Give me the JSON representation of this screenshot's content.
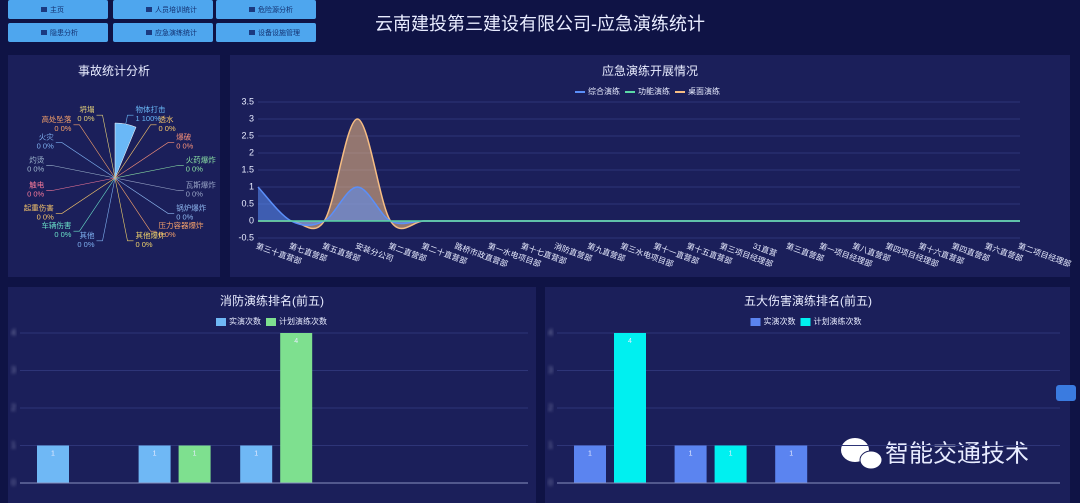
{
  "nav": [
    "主页",
    "人员培训统计",
    "危险源分析",
    "隐患分析",
    "应急演练统计",
    "设备设施管理"
  ],
  "title": "云南建投第三建设有限公司-应急演练统计",
  "watermark": "智能交通技术",
  "chart_data": [
    {
      "type": "pie",
      "title": "事故统计分析",
      "categories": [
        "物体打击",
        "透水",
        "爆破",
        "火药爆炸",
        "瓦斯爆炸",
        "锅炉爆炸",
        "压力容器爆炸",
        "其他爆炸",
        "其他",
        "车辆伤害",
        "起重伤害",
        "触电",
        "灼烫",
        "火灾",
        "高处坠落",
        "坍塌"
      ],
      "values": [
        1,
        0,
        0,
        0,
        0,
        0,
        0,
        0,
        0,
        0,
        0,
        0,
        0,
        0,
        0,
        0
      ],
      "value_labels": [
        "1 100%",
        "0 0%",
        "0 0%",
        "0 0%",
        "0 0%",
        "0 0%",
        "0 0%",
        "0 0%",
        "0 0%",
        "0 0%",
        "0 0%",
        "0 0%",
        "0 0%",
        "0 0%",
        "0 0%",
        "0 0%"
      ],
      "colors": [
        "#6ab8f7",
        "#f7c66b",
        "#f7917a",
        "#8be0a4",
        "#9aa6c8",
        "#8fb8f0",
        "#f7a26b",
        "#f0d26b",
        "#7fb0f0",
        "#6be0c8",
        "#f7c66b",
        "#f77a9a",
        "#a0b8d0",
        "#7fb0f0",
        "#f7a26b",
        "#e6d27a"
      ]
    },
    {
      "type": "line",
      "title": "应急演练开展情况",
      "legend": "top",
      "grid": true,
      "categories": [
        "第三十直营部",
        "第七直营部",
        "第五直营部",
        "安装分公司",
        "第二直营部",
        "第二十直营部",
        "路桥市政直营部",
        "第一水电项目部",
        "第十七直营部",
        "消防直营部",
        "第九直营部",
        "第三水电项目部",
        "第十一直营部",
        "第十五直营部",
        "第三项目经理部",
        "31直营",
        "第三直营部",
        "第一项目经理部",
        "第八直营部",
        "第四项目经理部",
        "第十六直营部",
        "第四直营部",
        "第六直营部",
        "第二项目经理部"
      ],
      "series": [
        {
          "name": "综合演练",
          "color": "#5b8ff9",
          "values": [
            1,
            0,
            0,
            1,
            0,
            0,
            0,
            0,
            0,
            0,
            0,
            0,
            0,
            0,
            0,
            0,
            0,
            0,
            0,
            0,
            0,
            0,
            0,
            0
          ]
        },
        {
          "name": "功能演练",
          "color": "#5ad8a6",
          "values": [
            0,
            0,
            0,
            0,
            0,
            0,
            0,
            0,
            0,
            0,
            0,
            0,
            0,
            0,
            0,
            0,
            0,
            0,
            0,
            0,
            0,
            0,
            0,
            0
          ]
        },
        {
          "name": "桌面演练",
          "color": "#f6bd83",
          "values": [
            0,
            0,
            0,
            3,
            0,
            0,
            0,
            0,
            0,
            0,
            0,
            0,
            0,
            0,
            0,
            0,
            0,
            0,
            0,
            0,
            0,
            0,
            0,
            0
          ]
        }
      ],
      "ylim": [
        -0.5,
        3.5
      ],
      "yticks": [
        -0.5,
        0,
        0.5,
        1,
        1.5,
        2,
        2.5,
        3,
        3.5
      ]
    },
    {
      "type": "bar",
      "title": "消防演练排名(前五)",
      "legend": "top",
      "grid": true,
      "categories": [
        null,
        null,
        null,
        null,
        null
      ],
      "series": [
        {
          "name": "实演次数",
          "color": "#6fb8f5",
          "values": [
            1,
            1,
            1,
            0,
            0
          ]
        },
        {
          "name": "计划演练次数",
          "color": "#7ee08f",
          "values": [
            0,
            1,
            4,
            0,
            0
          ]
        }
      ],
      "ylim": [
        0,
        4
      ],
      "yticks": [
        0,
        1,
        2,
        3,
        4
      ]
    },
    {
      "type": "bar",
      "title": "五大伤害演练排名(前五)",
      "legend": "top",
      "grid": true,
      "categories": [
        null,
        null,
        null,
        null,
        null
      ],
      "series": [
        {
          "name": "实演次数",
          "color": "#5b84f0",
          "values": [
            1,
            1,
            1,
            0,
            0
          ]
        },
        {
          "name": "计划演练次数",
          "color": "#00f0f0",
          "values": [
            4,
            1,
            0,
            0,
            0
          ]
        }
      ],
      "ylim": [
        0,
        4
      ],
      "yticks": [
        0,
        1,
        2,
        3,
        4
      ]
    }
  ]
}
